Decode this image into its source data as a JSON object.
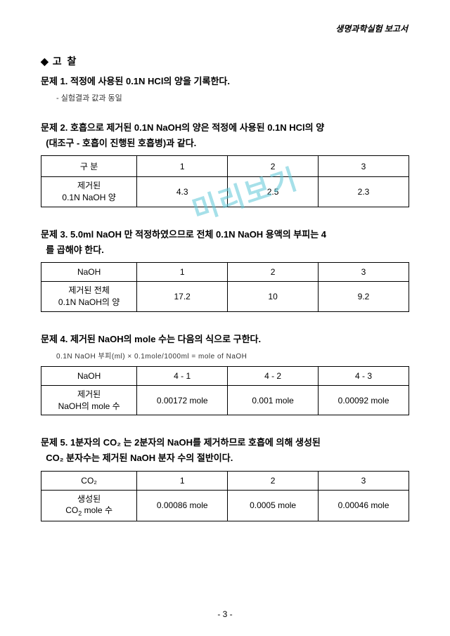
{
  "header": "생명과학실험 보고서",
  "watermark": "미리보기",
  "sectionTitle": "고  찰",
  "problem1": {
    "title": "문제 1. 적정에 사용된 0.1N HCl의 양을 기록한다.",
    "note": "- 실험결과 값과 동일"
  },
  "problem2": {
    "title_l1": "문제 2. 호흡으로 제거된 0.1N NaOH의 양은 적정에 사용된 0.1N HCl의 양",
    "title_l2": "(대조구 - 호흡이 진행된 호흡병)과 같다.",
    "row_header_top": "구     분",
    "row_header_bot": "제거된\n0.1N NaOH 양",
    "cols": [
      "1",
      "2",
      "3"
    ],
    "values": [
      "4.3",
      "2.5",
      "2.3"
    ]
  },
  "problem3": {
    "title_l1": "문제 3. 5.0ml NaOH 만 적정하였으므로 전체 0.1N NaOH 용액의 부피는 4",
    "title_l2": "를 곱해야 한다.",
    "row_header_top": "NaOH",
    "row_header_bot": "제거된 전체\n0.1N NaOH의 양",
    "cols": [
      "1",
      "2",
      "3"
    ],
    "values": [
      "17.2",
      "10",
      "9.2"
    ]
  },
  "problem4": {
    "title": "문제 4. 제거된 NaOH의 mole 수는 다음의 식으로 구한다.",
    "formula": "0.1N NaOH 부피(ml) × 0.1mole/1000ml = mole of NaOH",
    "row_header_top": "NaOH",
    "row_header_bot": "제거된\nNaOH의 mole 수",
    "cols": [
      "4 - 1",
      "4 - 2",
      "4 - 3"
    ],
    "values": [
      "0.00172 mole",
      "0.001 mole",
      "0.00092 mole"
    ]
  },
  "problem5": {
    "title_l1": "문제 5. 1분자의 CO₂ 는 2분자의 NaOH를 제거하므로 호흡에 의해 생성된",
    "title_l2": "CO₂ 분자수는 제거된 NaOH 분자 수의 절반이다.",
    "row_header_top": "CO₂",
    "row_header_bot": "생성된\nCO₂ mole 수",
    "cols": [
      "1",
      "2",
      "3"
    ],
    "values": [
      "0.00086 mole",
      "0.0005 mole",
      "0.00046 mole"
    ]
  },
  "pageNum": "- 3 -"
}
